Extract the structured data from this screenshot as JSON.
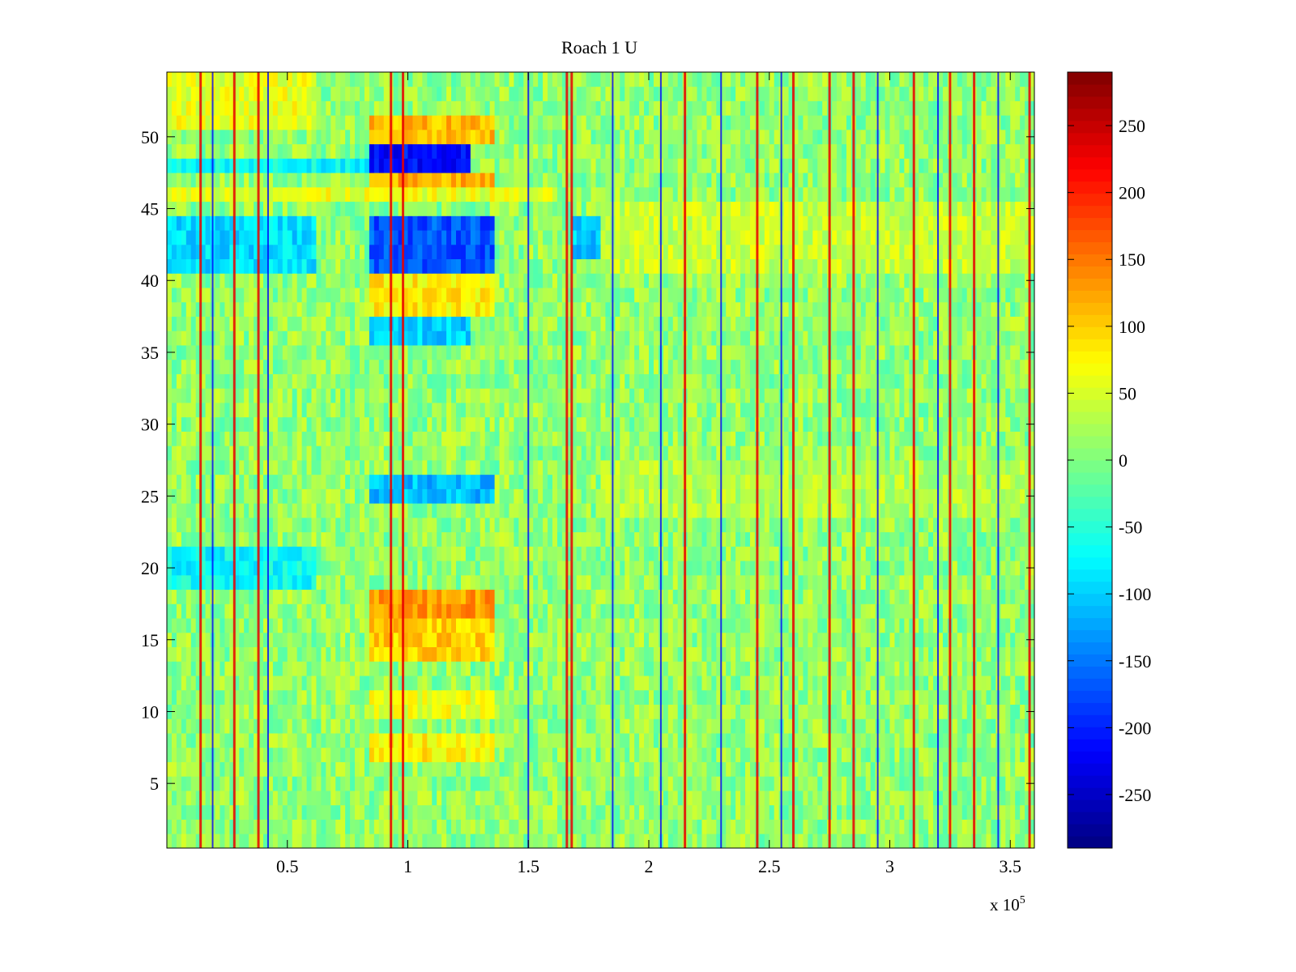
{
  "chart_data": {
    "type": "heatmap",
    "title": "Roach 1 U",
    "xlabel": "",
    "ylabel": "",
    "x_multiplier_label": {
      "base": "x 10",
      "exponent": "5"
    },
    "xlim": [
      0,
      3.6
    ],
    "ylim": [
      0.5,
      54.5
    ],
    "x_ticks": [
      0.5,
      1,
      1.5,
      2,
      2.5,
      3,
      3.5
    ],
    "x_tick_labels": [
      "0.5",
      "1",
      "1.5",
      "2",
      "2.5",
      "3",
      "3.5"
    ],
    "y_ticks": [
      5,
      10,
      15,
      20,
      25,
      30,
      35,
      40,
      45,
      50
    ],
    "y_tick_labels": [
      "5",
      "10",
      "15",
      "20",
      "25",
      "30",
      "35",
      "40",
      "45",
      "50"
    ],
    "rows": 54,
    "colormap": "jet",
    "clim": [
      -290,
      290
    ],
    "colorbar_ticks": [
      250,
      200,
      150,
      100,
      50,
      0,
      -50,
      -100,
      -150,
      -200,
      -250
    ],
    "colorbar_tick_labels": [
      "250",
      "200",
      "150",
      "100",
      "50",
      "0",
      "-50",
      "-100",
      "-150",
      "-200",
      "-250"
    ],
    "baseline_value": 10,
    "bright_vertical_lines_x": [
      0.14,
      0.28,
      0.38,
      0.93,
      0.98,
      1.66,
      1.68,
      2.15,
      2.45,
      2.6,
      2.75,
      2.85,
      3.1,
      3.25,
      3.35,
      3.58
    ],
    "dark_vertical_lines_x": [
      0.19,
      0.42,
      1.5,
      1.85,
      2.05,
      2.3,
      2.55,
      2.95,
      3.2,
      3.45
    ],
    "regions": [
      {
        "x_range": [
          0.83,
          1.25
        ],
        "rows": [
          48,
          49
        ],
        "value": -210
      },
      {
        "x_range": [
          0.83,
          1.35
        ],
        "rows": [
          41,
          42,
          43,
          44
        ],
        "value": -170
      },
      {
        "x_range": [
          0.83,
          1.35
        ],
        "rows": [
          25,
          26
        ],
        "value": -110
      },
      {
        "x_range": [
          0.83,
          1.25
        ],
        "rows": [
          36,
          37
        ],
        "value": -100
      },
      {
        "x_range": [
          0.83,
          1.35
        ],
        "rows": [
          50,
          51
        ],
        "value": 110
      },
      {
        "x_range": [
          0.83,
          1.35
        ],
        "rows": [
          47
        ],
        "value": 120
      },
      {
        "x_range": [
          0.83,
          1.35
        ],
        "rows": [
          38,
          39,
          40
        ],
        "value": 80
      },
      {
        "x_range": [
          0.83,
          1.35
        ],
        "rows": [
          17,
          18
        ],
        "value": 130
      },
      {
        "x_range": [
          0.83,
          1.35
        ],
        "rows": [
          14,
          15,
          16
        ],
        "value": 100
      },
      {
        "x_range": [
          0.83,
          1.35
        ],
        "rows": [
          7,
          8
        ],
        "value": 80
      },
      {
        "x_range": [
          0.83,
          1.35
        ],
        "rows": [
          10,
          11
        ],
        "value": 60
      },
      {
        "x_range": [
          0.0,
          0.62
        ],
        "rows": [
          41,
          42,
          43,
          44
        ],
        "value": -90
      },
      {
        "x_range": [
          0.0,
          0.62
        ],
        "rows": [
          19,
          20,
          21
        ],
        "value": -70
      },
      {
        "x_range": [
          0.0,
          0.83
        ],
        "rows": [
          48
        ],
        "value": -70
      },
      {
        "x_range": [
          0.0,
          1.6
        ],
        "rows": [
          46
        ],
        "value": 60
      },
      {
        "x_range": [
          0.0,
          0.62
        ],
        "rows": [
          51,
          52,
          53,
          54
        ],
        "value": 60
      },
      {
        "x_range": [
          1.68,
          1.8
        ],
        "rows": [
          42,
          43,
          44
        ],
        "value": -100
      },
      {
        "x_range": [
          1.8,
          3.6
        ],
        "rows": [
          41,
          42,
          43,
          44,
          45
        ],
        "value": 40
      },
      {
        "x_range": [
          1.8,
          3.6
        ],
        "rows": [
          24,
          25,
          26,
          27
        ],
        "value": 30
      }
    ]
  }
}
